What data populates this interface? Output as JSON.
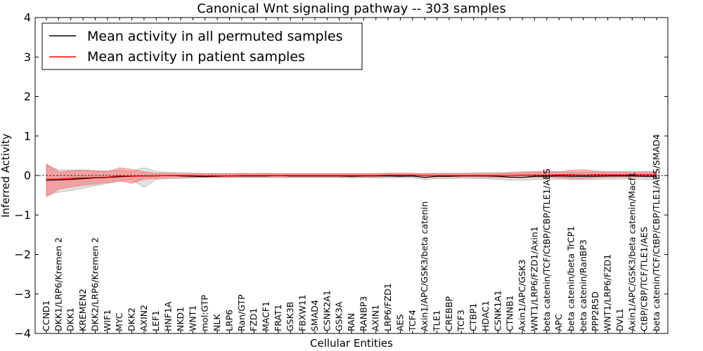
{
  "chart_data": {
    "type": "line",
    "title": "Canonical Wnt signaling pathway -- 303 samples",
    "xlabel": "Cellular Entities",
    "ylabel": "Inferred Activity",
    "ylim": [
      -4,
      4
    ],
    "yticks": [
      {
        "value": 4,
        "label": "4"
      },
      {
        "value": 3,
        "label": "3"
      },
      {
        "value": 2,
        "label": "2"
      },
      {
        "value": 1,
        "label": "1"
      },
      {
        "value": 0,
        "label": "0"
      },
      {
        "value": -1,
        "label": "−1"
      },
      {
        "value": -2,
        "label": "−2"
      },
      {
        "value": -3,
        "label": "−3"
      },
      {
        "value": -4,
        "label": "−4"
      }
    ],
    "legend_position": "top-left",
    "categories": [
      "CCND1",
      "DKK1/LRP6/Kremen 2",
      "DKK1",
      "KREMEN2",
      "DKK2/LRP6/Kremen 2",
      "WIF1",
      "MYC",
      "DKK2",
      "AXIN2",
      "LEF1",
      "HNF1A",
      "NKD1",
      "WNT1",
      "mol:GTP",
      "NLK",
      "LRP6",
      "Ran/GTP",
      "FZD1",
      "MACF1",
      "FRAT1",
      "GSK3B",
      "FBXW11",
      "SMAD4",
      "CSNK2A1",
      "GSK3A",
      "RAN",
      "RANBP3",
      "AXIN1",
      "LRP6/FZD1",
      "AES",
      "TCF4",
      "Axin1/APC/GSK3/beta catenin",
      "TLE1",
      "CREBBP",
      "TCF3",
      "CTBP1",
      "HDAC1",
      "CSNK1A1",
      "CTNNB1",
      "Axin1/APC/GSK3",
      "WNT1/LRP6/FZD1/Axin1",
      "beta catenin/TCF/CtBP/CBP/TLE1/AES",
      "APC",
      "beta catenin/beta TrCP1",
      "beta catenin/RanBP3",
      "PPP2R5D",
      "WNT1/LRP6/FZD1",
      "DVL1",
      "Axin1/APC/GSK3/beta catenin/Macf1",
      "CtBP/CBP/TCF/TLE1/AES",
      "beta catenin/TCF/CtBP/CBP/TLE1/AES/SMAD4"
    ],
    "series": [
      {
        "name": "Mean activity in all permuted samples",
        "color": "#000000",
        "values": [
          -0.12,
          -0.11,
          -0.1,
          -0.08,
          -0.06,
          -0.05,
          -0.03,
          -0.02,
          -0.01,
          -0.01,
          0,
          -0.01,
          -0.02,
          -0.03,
          -0.02,
          -0.01,
          -0.01,
          -0.01,
          -0.01,
          0,
          -0.01,
          -0.01,
          -0.01,
          -0.01,
          -0.01,
          -0.02,
          -0.01,
          -0.01,
          -0.01,
          -0.02,
          -0.01,
          -0.05,
          -0.02,
          -0.02,
          -0.01,
          -0.01,
          -0.01,
          -0.02,
          -0.04,
          -0.05,
          -0.02,
          -0.02,
          -0.01,
          -0.02,
          -0.02,
          -0.02,
          -0.01,
          -0.01,
          -0.01,
          -0.02,
          -0.02
        ],
        "band_lower": [
          -0.5,
          -0.42,
          -0.38,
          -0.32,
          -0.26,
          -0.2,
          -0.14,
          -0.1,
          -0.3,
          -0.1,
          -0.08,
          -0.08,
          -0.06,
          -0.05,
          -0.05,
          -0.05,
          -0.05,
          -0.05,
          -0.05,
          -0.05,
          -0.05,
          -0.05,
          -0.05,
          -0.05,
          -0.05,
          -0.06,
          -0.05,
          -0.06,
          -0.06,
          -0.06,
          -0.06,
          -0.1,
          -0.08,
          -0.08,
          -0.07,
          -0.08,
          -0.08,
          -0.1,
          -0.12,
          -0.12,
          -0.1,
          -0.1,
          -0.09,
          -0.1,
          -0.1,
          -0.1,
          -0.09,
          -0.09,
          -0.09,
          -0.1,
          -0.1
        ],
        "band_upper": [
          0.25,
          0.15,
          0.14,
          0.14,
          0.12,
          0.12,
          0.12,
          0.1,
          0.2,
          0.1,
          0.08,
          0.08,
          0.06,
          0.05,
          0.05,
          0.05,
          0.05,
          0.05,
          0.05,
          0.05,
          0.05,
          0.05,
          0.05,
          0.05,
          0.05,
          0.05,
          0.05,
          0.05,
          0.05,
          0.05,
          0.05,
          0.05,
          0.06,
          0.06,
          0.06,
          0.07,
          0.07,
          0.07,
          0.07,
          0.07,
          0.08,
          0.08,
          0.08,
          0.08,
          0.08,
          0.08,
          0.08,
          0.08,
          0.08,
          0.08,
          0.08
        ]
      },
      {
        "name": "Mean activity in patient samples",
        "color": "#ff0000",
        "values": [
          -0.09,
          -0.09,
          -0.07,
          -0.06,
          -0.05,
          -0.04,
          -0.01,
          -0.02,
          -0.01,
          -0.01,
          0,
          0,
          0,
          -0.01,
          -0.01,
          -0.01,
          0,
          0,
          0,
          0,
          0,
          0,
          0,
          0,
          0,
          0,
          0,
          0,
          0.01,
          0.01,
          0.01,
          0,
          0,
          0,
          0,
          0,
          0,
          0,
          0,
          0.01,
          0.01,
          0.01,
          0.02,
          0.02,
          0.01,
          0.02,
          0.02,
          0.02,
          0.02,
          0.02,
          0.02
        ],
        "band_lower": [
          -0.55,
          -0.35,
          -0.3,
          -0.25,
          -0.22,
          -0.18,
          -0.14,
          -0.2,
          -0.1,
          -0.08,
          -0.06,
          -0.05,
          -0.05,
          -0.04,
          -0.04,
          -0.04,
          -0.04,
          -0.04,
          -0.04,
          -0.04,
          -0.04,
          -0.04,
          -0.04,
          -0.04,
          -0.04,
          -0.04,
          -0.04,
          -0.04,
          -0.03,
          -0.03,
          -0.03,
          -0.04,
          -0.04,
          -0.04,
          -0.04,
          -0.04,
          -0.05,
          -0.05,
          -0.06,
          -0.05,
          -0.05,
          -0.05,
          -0.06,
          -0.08,
          -0.08,
          -0.06,
          -0.05,
          -0.04,
          -0.04,
          -0.04,
          -0.04
        ],
        "band_upper": [
          0.3,
          0.1,
          0.12,
          0.14,
          0.12,
          0.1,
          0.2,
          0.16,
          0.1,
          0.06,
          0.06,
          0.05,
          0.05,
          0.05,
          0.05,
          0.05,
          0.06,
          0.05,
          0.06,
          0.05,
          0.05,
          0.05,
          0.05,
          0.05,
          0.05,
          0.05,
          0.05,
          0.05,
          0.06,
          0.06,
          0.06,
          0.05,
          0.05,
          0.05,
          0.05,
          0.05,
          0.06,
          0.06,
          0.08,
          0.1,
          0.1,
          0.12,
          0.1,
          0.14,
          0.15,
          0.12,
          0.1,
          0.1,
          0.1,
          0.1,
          0.1
        ]
      }
    ]
  }
}
